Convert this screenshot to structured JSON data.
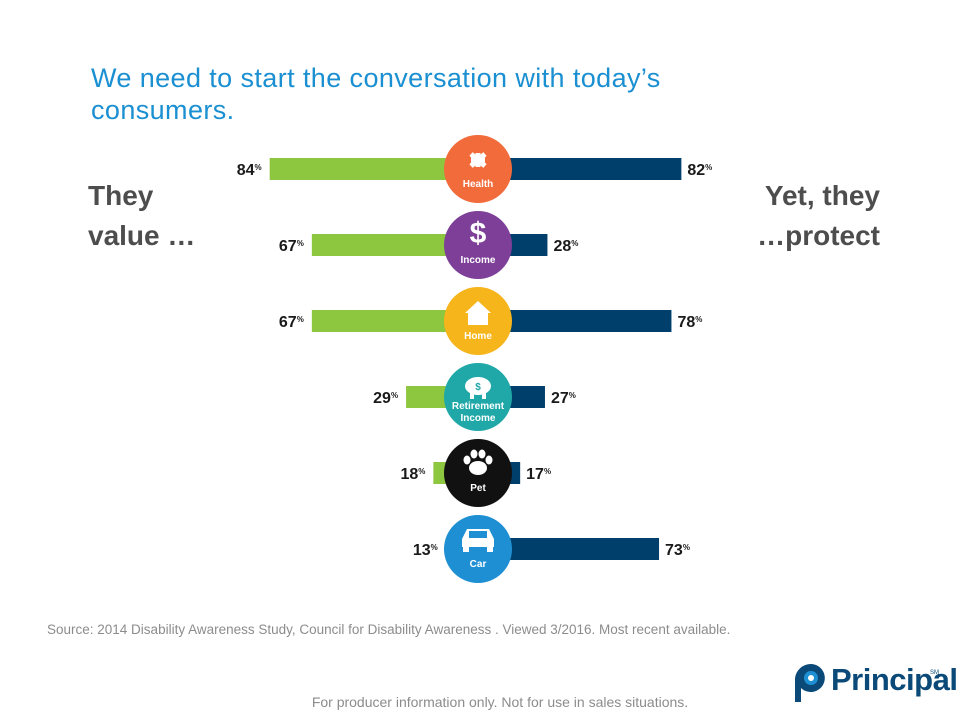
{
  "title": "We need to start the conversation with today’s consumers.",
  "left_label_line1": "They",
  "left_label_line2": "value …",
  "right_label_line1": "Yet, they",
  "right_label_line2": "…protect",
  "source": "Source: 2014 Disability Awareness Study, Council for Disability Awareness . Viewed 3/2016. Most recent available.",
  "footer": "For producer information only.  Not for use in sales situations.",
  "logo": {
    "name": "Principal",
    "mark": "SM"
  },
  "colors": {
    "value_bar": "#8dc63f",
    "protect_bar": "#003e6b",
    "title": "#1a8fd1"
  },
  "chart_data": {
    "type": "bar",
    "orientation": "diverging-horizontal",
    "categories": [
      "Health",
      "Income",
      "Home",
      "Retirement Income",
      "Pet",
      "Car"
    ],
    "icon_colors": [
      "#f26b3a",
      "#7d3f98",
      "#f5b51b",
      "#20a7a8",
      "#111111",
      "#1e8fd3"
    ],
    "icon_names": [
      "medical-icon",
      "dollar-icon",
      "house-icon",
      "piggy-bank-icon",
      "paw-icon",
      "car-icon"
    ],
    "series": [
      {
        "values": [
          84,
          67,
          67,
          29,
          18,
          13
        ]
      },
      {
        "values": [
          82,
          28,
          78,
          27,
          17,
          73
        ]
      }
    ],
    "unit": "%",
    "xlim": [
      0,
      100
    ]
  }
}
